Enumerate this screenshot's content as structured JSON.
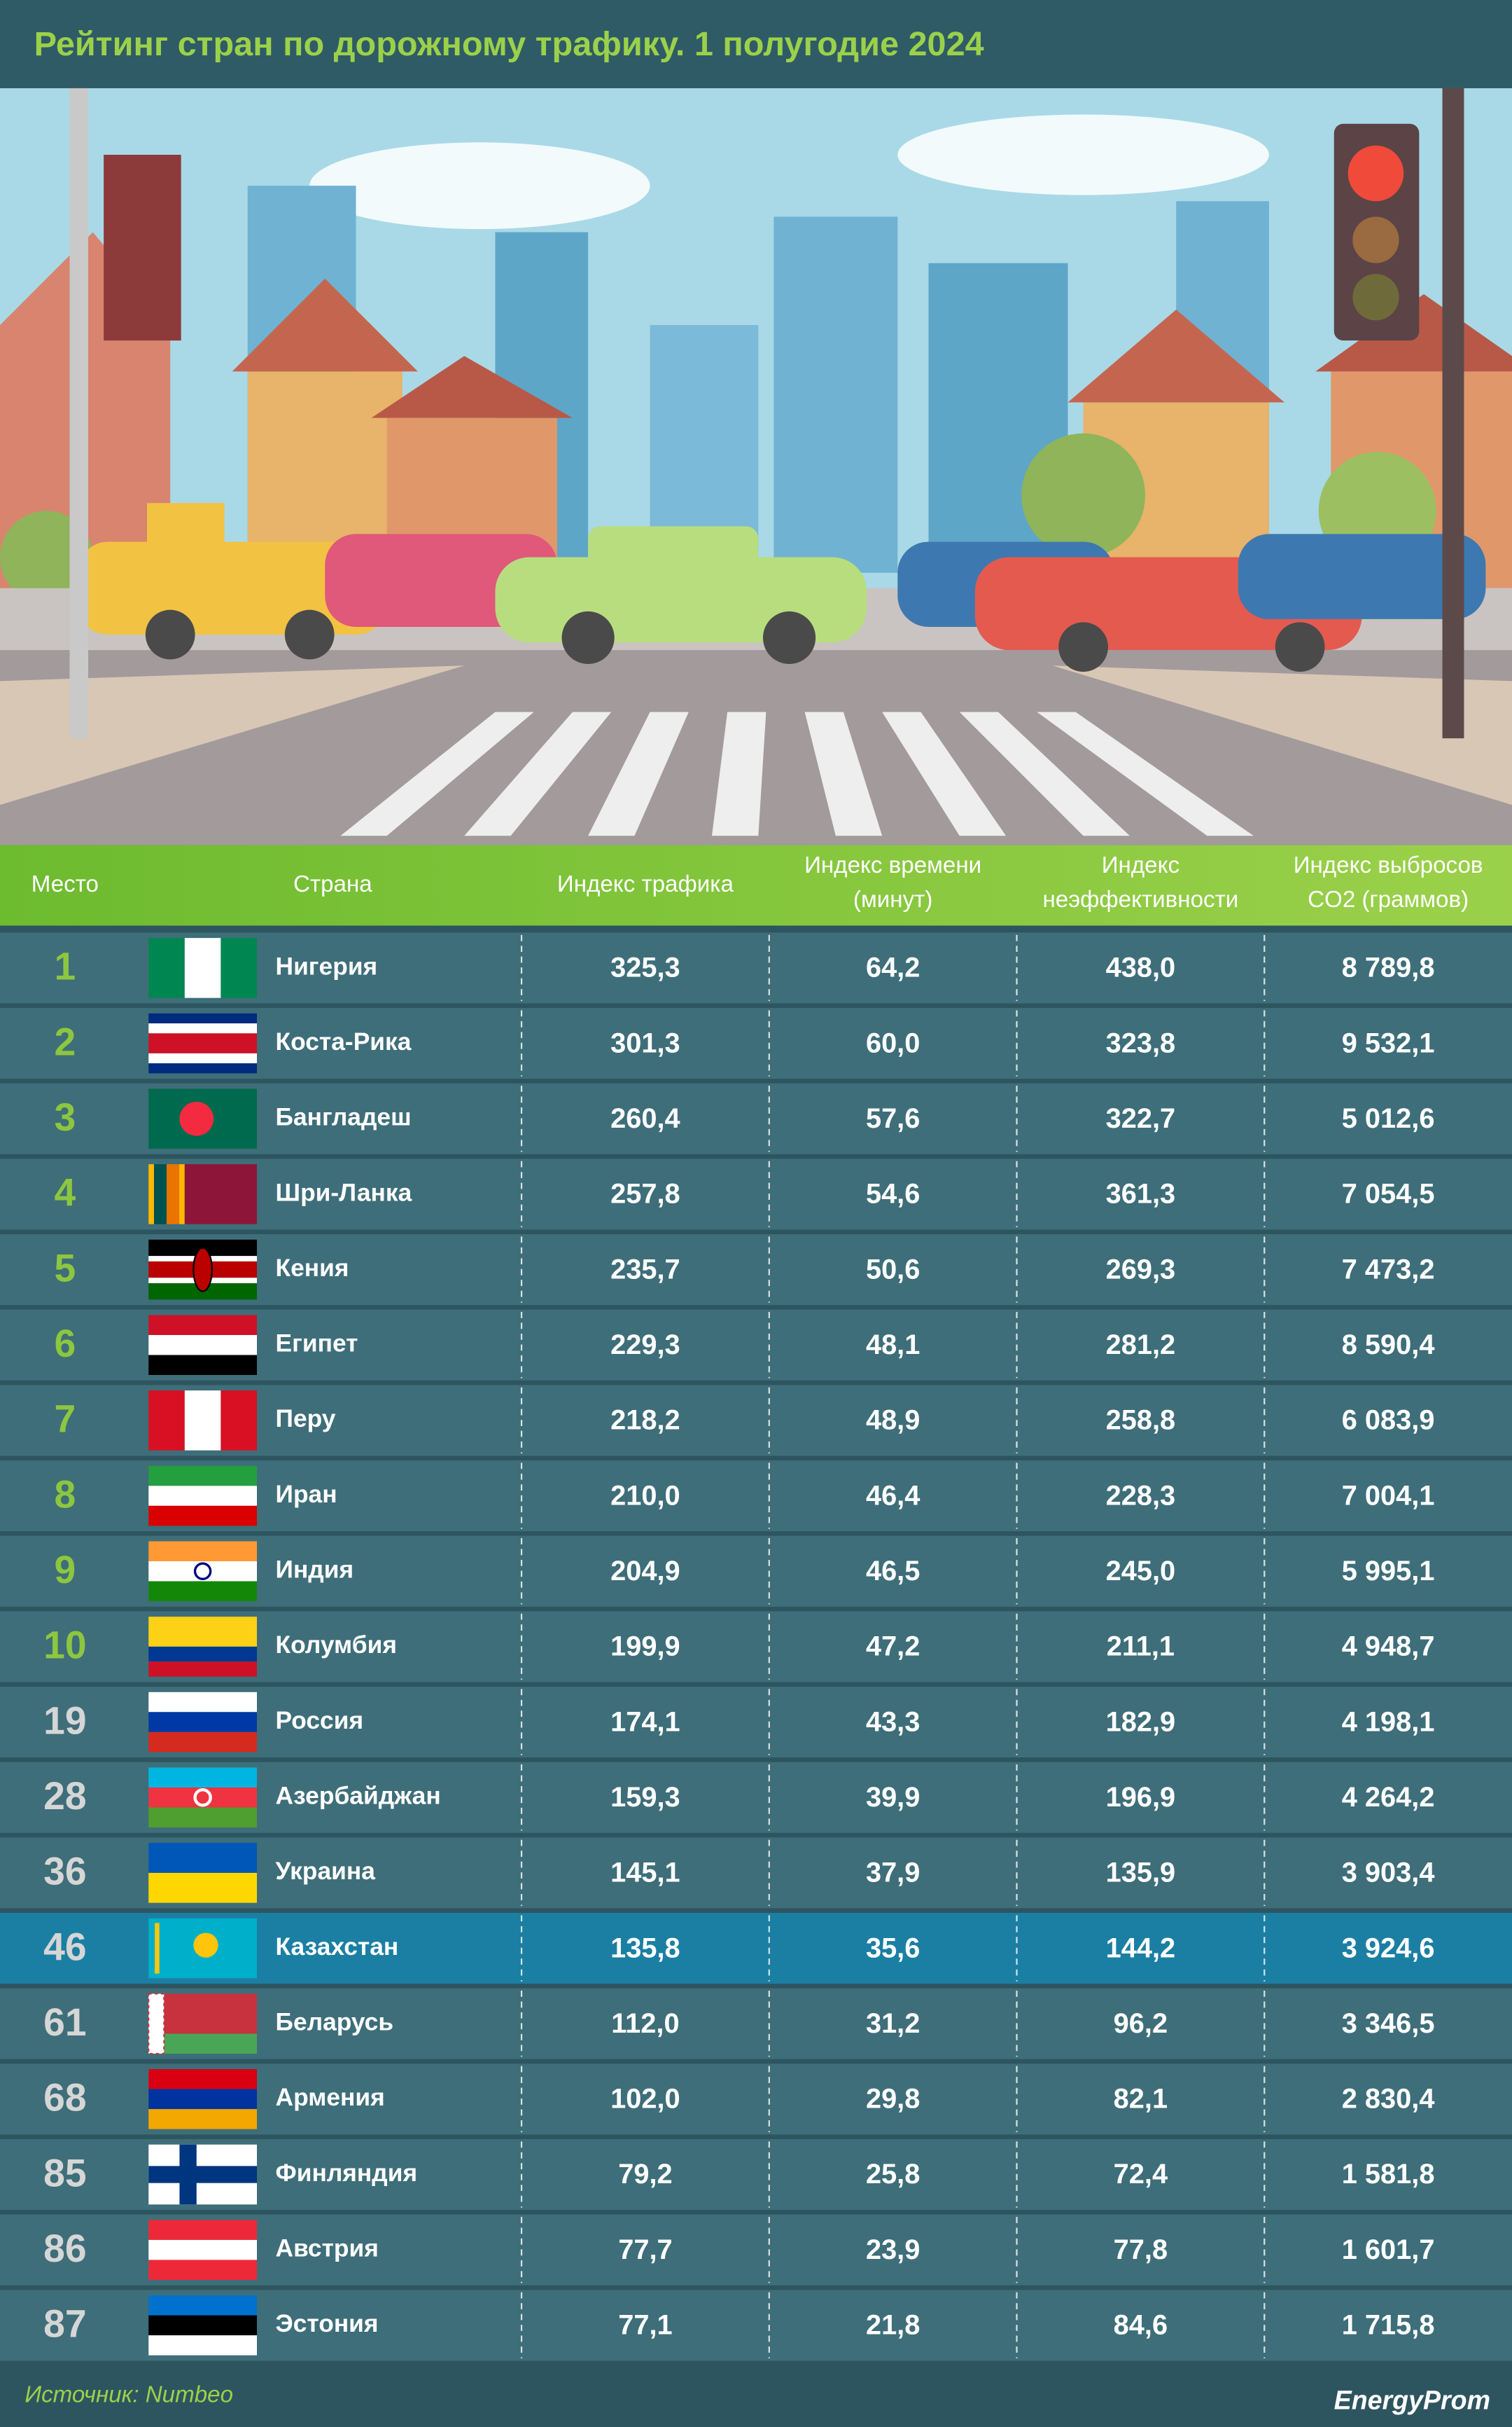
{
  "header": {
    "title": "Рейтинг стран по дорожному трафику. 1 полугодие 2024"
  },
  "table": {
    "columns": [
      [
        "Место"
      ],
      [
        "Страна"
      ],
      [
        "Индекс трафика"
      ],
      [
        "Индекс времени",
        "(минут)"
      ],
      [
        "Индекс",
        "неэффективности"
      ],
      [
        "Индекс выбросов",
        "CO2 (граммов)"
      ]
    ],
    "rows": [
      [
        "1",
        "Нигерия",
        "325,3",
        "64,2",
        "438,0",
        "8 789,8"
      ],
      [
        "2",
        "Коста-Рика",
        "301,3",
        "60,0",
        "323,8",
        "9 532,1"
      ],
      [
        "3",
        "Бангладеш",
        "260,4",
        "57,6",
        "322,7",
        "5 012,6"
      ],
      [
        "4",
        "Шри-Ланка",
        "257,8",
        "54,6",
        "361,3",
        "7 054,5"
      ],
      [
        "5",
        "Кения",
        "235,7",
        "50,6",
        "269,3",
        "7 473,2"
      ],
      [
        "6",
        "Египет",
        "229,3",
        "48,1",
        "281,2",
        "8 590,4"
      ],
      [
        "7",
        "Перу",
        "218,2",
        "48,9",
        "258,8",
        "6 083,9"
      ],
      [
        "8",
        "Иран",
        "210,0",
        "46,4",
        "228,3",
        "7 004,1"
      ],
      [
        "9",
        "Индия",
        "204,9",
        "46,5",
        "245,0",
        "5 995,1"
      ],
      [
        "10",
        "Колумбия",
        "199,9",
        "47,2",
        "211,1",
        "4 948,7"
      ],
      [
        "19",
        "Россия",
        "174,1",
        "43,3",
        "182,9",
        "4 198,1"
      ],
      [
        "28",
        "Азербайджан",
        "159,3",
        "39,9",
        "196,9",
        "4 264,2"
      ],
      [
        "36",
        "Украина",
        "145,1",
        "37,9",
        "135,9",
        "3 903,4"
      ],
      [
        "46",
        "Казахстан",
        "135,8",
        "35,6",
        "144,2",
        "3 924,6"
      ],
      [
        "61",
        "Беларусь",
        "112,0",
        "31,2",
        "96,2",
        "3 346,5"
      ],
      [
        "68",
        "Армения",
        "102,0",
        "29,8",
        "82,1",
        "2 830,4"
      ],
      [
        "85",
        "Финляндия",
        "79,2",
        "25,8",
        "72,4",
        "1 581,8"
      ],
      [
        "86",
        "Австрия",
        "77,7",
        "23,9",
        "77,8",
        "1 601,7"
      ],
      [
        "87",
        "Эстония",
        "77,1",
        "21,8",
        "84,6",
        "1 715,8"
      ]
    ]
  },
  "footer": {
    "source": "Источник: Numbeo",
    "brand": "EnergyProm"
  }
}
